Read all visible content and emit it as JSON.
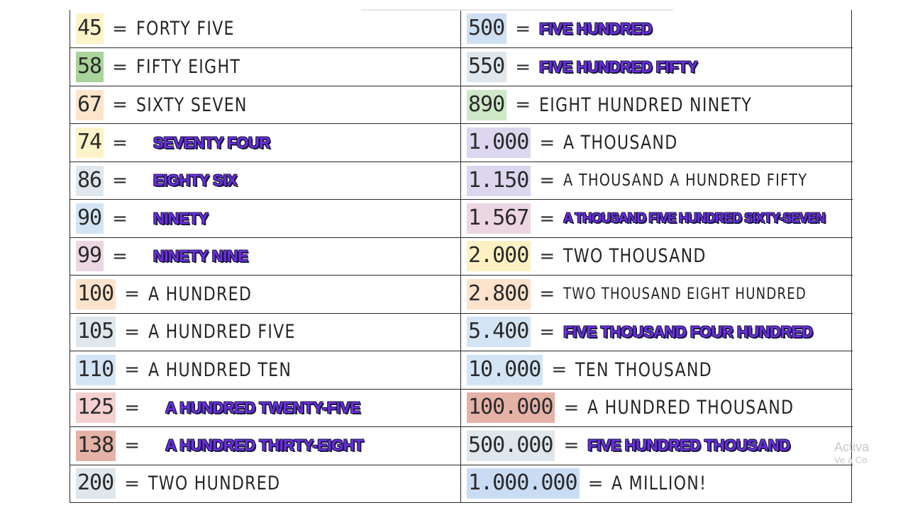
{
  "rows": [
    {
      "left": {
        "num": "45",
        "bg": "#fdf3c8",
        "word": "FORTY FIVE",
        "style": "hand"
      },
      "right": {
        "num": "500",
        "bg": "#cfe0f3",
        "word": "FIVE HUNDRED",
        "style": "typed"
      }
    },
    {
      "left": {
        "num": "58",
        "bg": "#a8d39a",
        "word": "FIFTY EIGHT",
        "style": "hand"
      },
      "right": {
        "num": "550",
        "bg": "#dfe7ec",
        "word": "FIVE HUNDRED FIFTY",
        "style": "typed"
      }
    },
    {
      "left": {
        "num": "67",
        "bg": "#fde5cc",
        "word": "SIXTY SEVEN",
        "style": "hand"
      },
      "right": {
        "num": "890",
        "bg": "#cfe8c8",
        "word": "EIGHT HUNDRED NINETY",
        "style": "hand"
      }
    },
    {
      "left": {
        "num": "74",
        "bg": "#fdf3c8",
        "word": "SEVENTY FOUR",
        "style": "typed"
      },
      "right": {
        "num": "1.000",
        "bg": "#dcd6ee",
        "word": "A THOUSAND",
        "style": "hand"
      }
    },
    {
      "left": {
        "num": "86",
        "bg": "#dfe7ec",
        "word": "EIGHTY SIX",
        "style": "typed"
      },
      "right": {
        "num": "1.150",
        "bg": "#dcd6ee",
        "word": "A THOUSAND A HUNDRED FIFTY",
        "style": "hand-small"
      }
    },
    {
      "left": {
        "num": "90",
        "bg": "#d3e5f4",
        "word": "NINETY",
        "style": "typed"
      },
      "right": {
        "num": "1.567",
        "bg": "#ecd6e2",
        "word": "A THOUSAND FIVE HUNDRED SIXTY-SEVEN",
        "style": "typed-small"
      }
    },
    {
      "left": {
        "num": "99",
        "bg": "#ecd6e2",
        "word": "NINETY NINE",
        "style": "typed"
      },
      "right": {
        "num": "2.000",
        "bg": "#fdf1c4",
        "word": "TWO THOUSAND",
        "style": "hand"
      }
    },
    {
      "left": {
        "num": "100",
        "bg": "#fde3cc",
        "word": "A HUNDRED",
        "style": "hand"
      },
      "right": {
        "num": "2.800",
        "bg": "#fde3cc",
        "word": "TWO THOUSAND EIGHT HUNDRED",
        "style": "hand-tiny"
      }
    },
    {
      "left": {
        "num": "105",
        "bg": "#dfe7ec",
        "word": "A HUNDRED FIVE",
        "style": "hand"
      },
      "right": {
        "num": "5.400",
        "bg": "#d3e5f4",
        "word": "FIVE THOUSAND FOUR HUNDRED",
        "style": "typed"
      }
    },
    {
      "left": {
        "num": "110",
        "bg": "#d3e5f4",
        "word": "A HUNDRED TEN",
        "style": "hand"
      },
      "right": {
        "num": "10.000",
        "bg": "#d3e5f4",
        "word": "TEN THOUSAND",
        "style": "hand"
      }
    },
    {
      "left": {
        "num": "125",
        "bg": "#f4d0d0",
        "word": "A HUNDRED TWENTY-FIVE",
        "style": "typed"
      },
      "right": {
        "num": "100.000",
        "bg": "#e4b2a6",
        "word": "A HUNDRED THOUSAND",
        "style": "hand"
      }
    },
    {
      "left": {
        "num": "138",
        "bg": "#e4b2a6",
        "word": "A HUNDRED THIRTY-EIGHT",
        "style": "typed"
      },
      "right": {
        "num": "500.000",
        "bg": "#dfe7ec",
        "word": "FIVE HUNDRED THOUSAND",
        "style": "typed"
      }
    },
    {
      "left": {
        "num": "200",
        "bg": "#dfe7ec",
        "word": "TWO HUNDRED",
        "style": "hand"
      },
      "right": {
        "num": "1.000.000",
        "bg": "#c9dcf4",
        "word": "A MILLION!",
        "style": "hand"
      }
    }
  ],
  "equals": "=",
  "watermark": {
    "line1": "Activa",
    "line2": "Ve a Co"
  }
}
